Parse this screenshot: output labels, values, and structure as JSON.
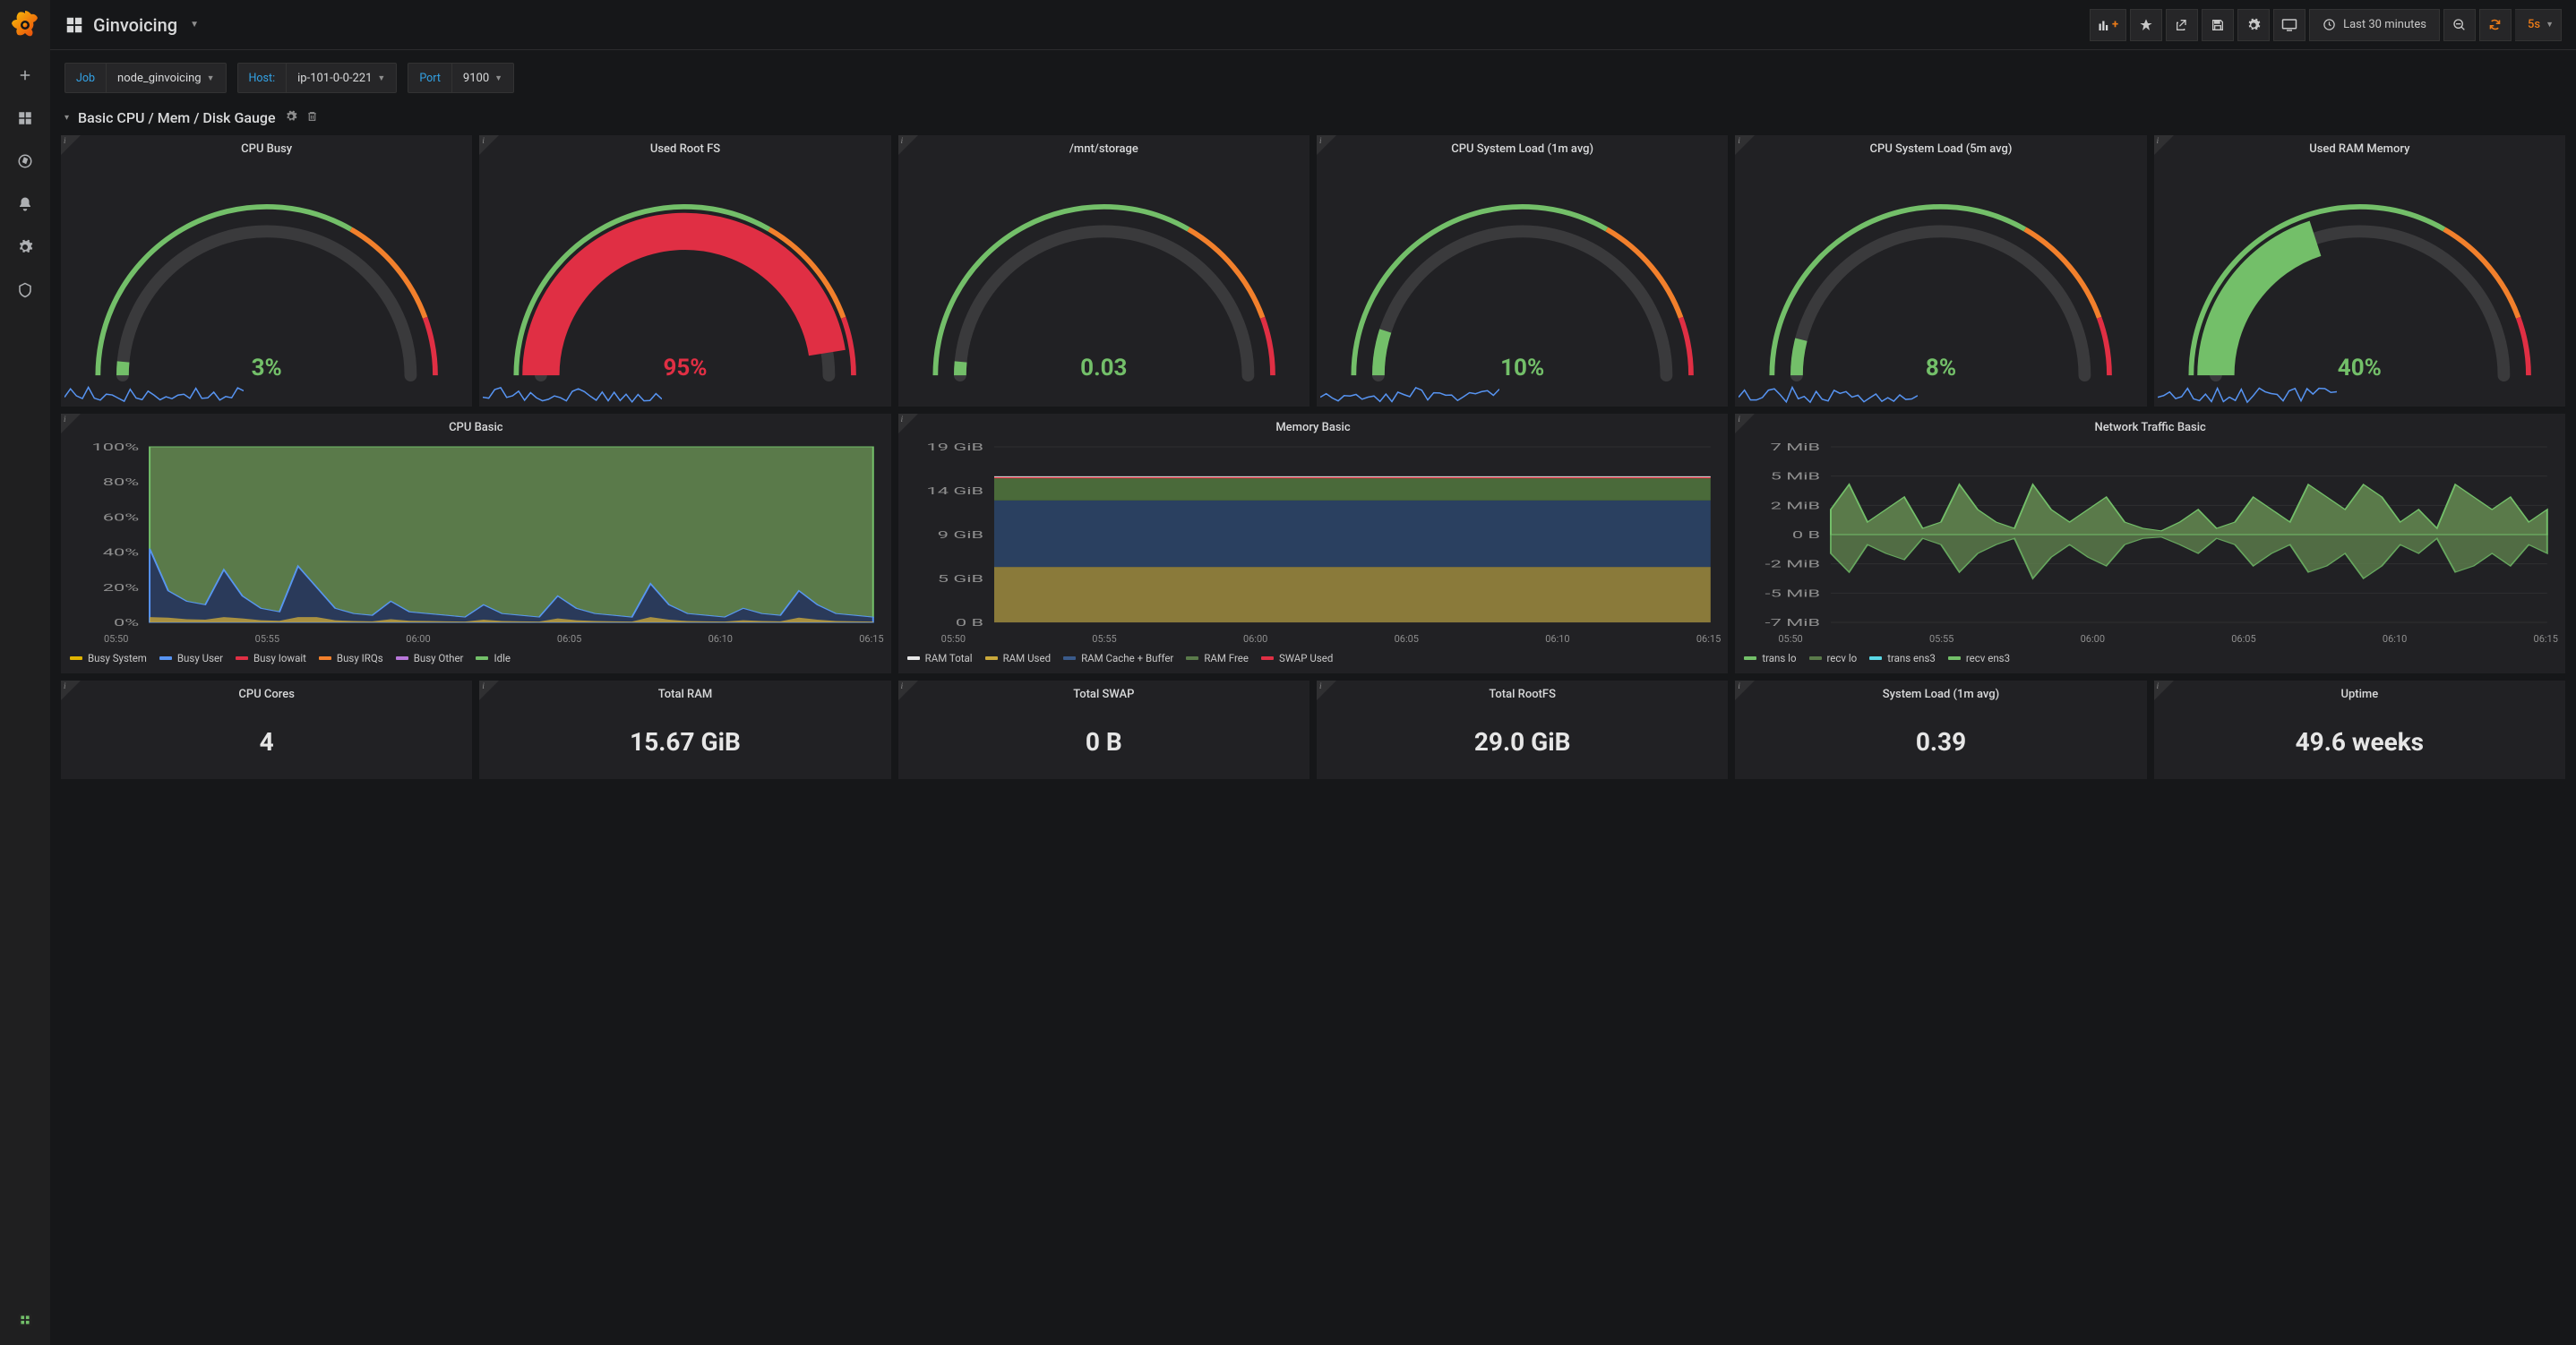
{
  "dashboard_title": "Ginvoicing",
  "time_range_label": "Last 30 minutes",
  "refresh_interval": "5s",
  "variables": [
    {
      "label": "Job",
      "value": "node_ginvoicing"
    },
    {
      "label": "Host:",
      "value": "ip-101-0-0-221"
    },
    {
      "label": "Port",
      "value": "9100"
    }
  ],
  "row": {
    "title": "Basic CPU / Mem / Disk Gauge"
  },
  "colors": {
    "panel_bg": "#212124",
    "green": "#73bf69",
    "red": "#e02f44",
    "orange": "#f2802c",
    "yellow": "#e0b400",
    "blue": "#5794f2",
    "gauge_track": "#3a3a3c",
    "spark": "#5794f2"
  },
  "gauges": [
    {
      "title": "CPU Busy",
      "value": "3%",
      "pct": 3,
      "value_color": "#73bf69",
      "fill_color": "#73bf69",
      "thick": false,
      "show_spark": true
    },
    {
      "title": "Used Root FS",
      "value": "95%",
      "pct": 95,
      "value_color": "#e02f44",
      "fill_color": "#e02f44",
      "thick": true,
      "show_spark": true
    },
    {
      "title": "/mnt/storage",
      "value": "0.03",
      "pct": 3,
      "value_color": "#73bf69",
      "fill_color": "#73bf69",
      "thick": false,
      "show_spark": false
    },
    {
      "title": "CPU System Load (1m avg)",
      "value": "10%",
      "pct": 10,
      "value_color": "#73bf69",
      "fill_color": "#73bf69",
      "thick": false,
      "show_spark": true
    },
    {
      "title": "CPU System Load (5m avg)",
      "value": "8%",
      "pct": 8,
      "value_color": "#73bf69",
      "fill_color": "#73bf69",
      "thick": false,
      "show_spark": true
    },
    {
      "title": "Used RAM Memory",
      "value": "40%",
      "pct": 40,
      "value_color": "#73bf69",
      "fill_color": "#73bf69",
      "thick": true,
      "show_spark": true
    }
  ],
  "cpu_chart": {
    "title": "CPU Basic",
    "y_ticks": [
      "100%",
      "80%",
      "60%",
      "40%",
      "20%",
      "0%"
    ],
    "x_ticks": [
      "05:50",
      "05:55",
      "06:00",
      "06:05",
      "06:10",
      "06:15"
    ],
    "legend": [
      {
        "label": "Busy System",
        "color": "#e0b400"
      },
      {
        "label": "Busy User",
        "color": "#5794f2"
      },
      {
        "label": "Busy Iowait",
        "color": "#e02f44"
      },
      {
        "label": "Busy IRQs",
        "color": "#f2802c"
      },
      {
        "label": "Busy Other",
        "color": "#b877d9"
      },
      {
        "label": "Idle",
        "color": "#73bf69"
      }
    ],
    "idle_fill": "#5a7a4a",
    "busy_fill": "#2a3a5a",
    "busy_series": [
      42,
      18,
      12,
      10,
      30,
      15,
      8,
      6,
      32,
      20,
      8,
      5,
      4,
      12,
      6,
      5,
      4,
      3,
      10,
      5,
      4,
      3,
      15,
      8,
      5,
      4,
      3,
      22,
      10,
      5,
      4,
      3,
      8,
      5,
      4,
      18,
      10,
      5,
      4,
      3
    ]
  },
  "mem_chart": {
    "title": "Memory Basic",
    "y_ticks": [
      "19 GiB",
      "14 GiB",
      "9 GiB",
      "5 GiB",
      "0 B"
    ],
    "x_ticks": [
      "05:50",
      "05:55",
      "06:00",
      "06:05",
      "06:10",
      "06:15"
    ],
    "legend": [
      {
        "label": "RAM Total",
        "color": "#e6e6e6"
      },
      {
        "label": "RAM Used",
        "color": "#c9a83b"
      },
      {
        "label": "RAM Cache + Buffer",
        "color": "#3a5a8a"
      },
      {
        "label": "RAM Free",
        "color": "#5a7a4a"
      },
      {
        "label": "SWAP Used",
        "color": "#e02f44"
      }
    ],
    "total_gib": 15.67,
    "used_y": 6.0,
    "cache_y": 13.2,
    "free_y": 15.67
  },
  "net_chart": {
    "title": "Network Traffic Basic",
    "y_ticks": [
      "7 MiB",
      "5 MiB",
      "2 MiB",
      "0 B",
      "-2 MiB",
      "-5 MiB",
      "-7 MiB"
    ],
    "x_ticks": [
      "05:50",
      "05:55",
      "06:00",
      "06:05",
      "06:10",
      "06:15"
    ],
    "legend": [
      {
        "label": "trans lo",
        "color": "#73bf69"
      },
      {
        "label": "recv lo",
        "color": "#5a7a4a"
      },
      {
        "label": "trans ens3",
        "color": "#5ad8e6"
      },
      {
        "label": "recv ens3",
        "color": "#73bf69"
      }
    ],
    "series_up": [
      2,
      4,
      1,
      2,
      3,
      0.5,
      1,
      4,
      2,
      1,
      0.5,
      4,
      2,
      1,
      2,
      3,
      1,
      0.5,
      0.3,
      1,
      2,
      0.5,
      1,
      3,
      2,
      1,
      4,
      3,
      2,
      4,
      3,
      1,
      2,
      0.5,
      4,
      3,
      2,
      3,
      1,
      2
    ],
    "series_dn": [
      1.5,
      3,
      0.8,
      1.5,
      2,
      0.3,
      0.8,
      3,
      1.5,
      0.8,
      0.3,
      3.5,
      1.8,
      0.8,
      1.8,
      2.5,
      0.8,
      0.3,
      0.2,
      0.8,
      1.5,
      0.3,
      0.8,
      2.5,
      1.5,
      0.8,
      3,
      2.5,
      1.5,
      3.5,
      2.5,
      0.8,
      1.5,
      0.3,
      3,
      2.5,
      1.5,
      2.5,
      0.8,
      1.5
    ]
  },
  "stats": [
    {
      "title": "CPU Cores",
      "value": "4"
    },
    {
      "title": "Total RAM",
      "value": "15.67 GiB"
    },
    {
      "title": "Total SWAP",
      "value": "0 B"
    },
    {
      "title": "Total RootFS",
      "value": "29.0 GiB"
    },
    {
      "title": "System Load (1m avg)",
      "value": "0.39"
    },
    {
      "title": "Uptime",
      "value": "49.6 weeks"
    }
  ]
}
